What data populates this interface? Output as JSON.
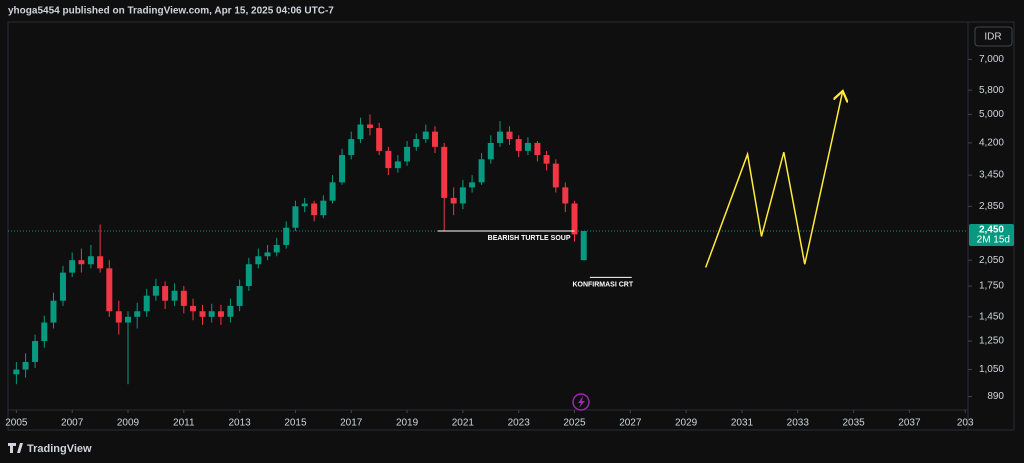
{
  "header": "yhoga5454 published on TradingView.com, Apr 15, 2025 04:06 UTC-7",
  "footer": "TradingView",
  "chart_data": {
    "type": "candlestick",
    "currency": "IDR",
    "log_scale": true,
    "grid": false,
    "up_color": "#089981",
    "down_color": "#f23645",
    "x": [
      2005.0,
      2005.33,
      2005.67,
      2006.0,
      2006.33,
      2006.67,
      2007.0,
      2007.33,
      2007.67,
      2008.0,
      2008.33,
      2008.67,
      2009.0,
      2009.33,
      2009.67,
      2010.0,
      2010.33,
      2010.67,
      2011.0,
      2011.33,
      2011.67,
      2012.0,
      2012.33,
      2012.67,
      2013.0,
      2013.33,
      2013.67,
      2014.0,
      2014.33,
      2014.67,
      2015.0,
      2015.33,
      2015.67,
      2016.0,
      2016.33,
      2016.67,
      2017.0,
      2017.33,
      2017.67,
      2018.0,
      2018.33,
      2018.67,
      2019.0,
      2019.33,
      2019.67,
      2020.0,
      2020.33,
      2020.67,
      2021.0,
      2021.33,
      2021.67,
      2022.0,
      2022.33,
      2022.67,
      2023.0,
      2023.33,
      2023.67,
      2024.0,
      2024.33,
      2024.67,
      2025.0,
      2025.33
    ],
    "open": [
      1020,
      1050,
      1100,
      1250,
      1400,
      1600,
      1900,
      2050,
      2000,
      2100,
      1950,
      1500,
      1400,
      1450,
      1500,
      1650,
      1750,
      1600,
      1700,
      1550,
      1500,
      1450,
      1500,
      1450,
      1550,
      1750,
      2000,
      2100,
      2150,
      2250,
      2500,
      2850,
      2900,
      2700,
      2950,
      3300,
      3900,
      4300,
      4700,
      4600,
      4000,
      3600,
      3750,
      4100,
      4300,
      4500,
      4100,
      3000,
      2900,
      3200,
      3300,
      3800,
      4200,
      4500,
      4300,
      4000,
      4200,
      3900,
      3700,
      3200,
      2900,
      2050
    ],
    "high": [
      1100,
      1160,
      1300,
      1460,
      1680,
      1980,
      2150,
      2200,
      2250,
      2550,
      2050,
      1600,
      1500,
      1580,
      1720,
      1830,
      1800,
      1780,
      1750,
      1620,
      1560,
      1570,
      1560,
      1620,
      1820,
      2080,
      2200,
      2250,
      2350,
      2600,
      2950,
      3000,
      2950,
      3050,
      3450,
      4050,
      4500,
      4900,
      5000,
      4750,
      4100,
      3900,
      4250,
      4450,
      4700,
      4650,
      4200,
      3200,
      3350,
      3450,
      3950,
      4400,
      4800,
      4650,
      4400,
      4350,
      4250,
      4000,
      3800,
      3300,
      2950,
      2450
    ],
    "low": [
      960,
      1000,
      1060,
      1200,
      1350,
      1550,
      1850,
      1900,
      1950,
      1900,
      1450,
      1300,
      960,
      1350,
      1450,
      1600,
      1520,
      1550,
      1480,
      1420,
      1380,
      1400,
      1380,
      1400,
      1500,
      1700,
      1950,
      2050,
      2100,
      2200,
      2450,
      2750,
      2600,
      2650,
      2900,
      3250,
      3800,
      4200,
      4400,
      3900,
      3450,
      3500,
      3650,
      4000,
      4200,
      3950,
      2450,
      2700,
      2800,
      3100,
      3250,
      3700,
      4100,
      4150,
      3850,
      3900,
      3750,
      3550,
      3100,
      2750,
      2300,
      2050
    ],
    "close": [
      1050,
      1100,
      1250,
      1400,
      1600,
      1900,
      2050,
      2000,
      2100,
      1950,
      1500,
      1400,
      1450,
      1500,
      1650,
      1750,
      1600,
      1700,
      1550,
      1500,
      1450,
      1500,
      1450,
      1550,
      1750,
      2000,
      2100,
      2150,
      2250,
      2500,
      2850,
      2900,
      2700,
      2950,
      3300,
      3900,
      4300,
      4700,
      4600,
      4000,
      3600,
      3750,
      4100,
      4300,
      4500,
      4100,
      3000,
      2900,
      3200,
      3300,
      3800,
      4200,
      4500,
      4300,
      4000,
      4200,
      3900,
      3700,
      3200,
      2900,
      2400,
      2450
    ],
    "xlim": [
      2004.7,
      2039.1
    ],
    "xticks": [
      2005,
      2007,
      2009,
      2011,
      2013,
      2015,
      2017,
      2019,
      2021,
      2023,
      2025,
      2027,
      2029,
      2031,
      2033,
      2035,
      2037,
      {
        "value": 2039,
        "label": "203"
      }
    ],
    "ylim": [
      830,
      8800
    ],
    "yticks": [
      {
        "value": 7000,
        "label": "7,000"
      },
      {
        "value": 5800,
        "label": "5,800"
      },
      {
        "value": 5000,
        "label": "5,000"
      },
      {
        "value": 4200,
        "label": "4,200"
      },
      {
        "value": 3450,
        "label": "3,450"
      },
      {
        "value": 2850,
        "label": "2,850"
      },
      {
        "value": 2050,
        "label": "2,050"
      },
      {
        "value": 1750,
        "label": "1,750"
      },
      {
        "value": 1450,
        "label": "1,450"
      },
      {
        "value": 1250,
        "label": "1,250"
      },
      {
        "value": 1050,
        "label": "1,050"
      },
      890
    ],
    "last_price": {
      "value": 2450,
      "label": "2,450",
      "countdown": "2M 15d",
      "color": "#089981"
    },
    "annotations": [
      {
        "text": "BEARISH TURTLE SOUP",
        "x": [
          2020.1,
          2025.0
        ],
        "value": 2450
      },
      {
        "text": "KONFIRMASI CRT",
        "x": [
          2025.55,
          2027.05
        ],
        "value": 1845
      }
    ],
    "projection": {
      "color": "#ffeb3b",
      "x": [
        2029.7,
        2031.2,
        2031.7,
        2032.5,
        2033.25,
        2034.6
      ],
      "values": [
        1960,
        3920,
        2370,
        3970,
        2000,
        5720
      ]
    }
  }
}
